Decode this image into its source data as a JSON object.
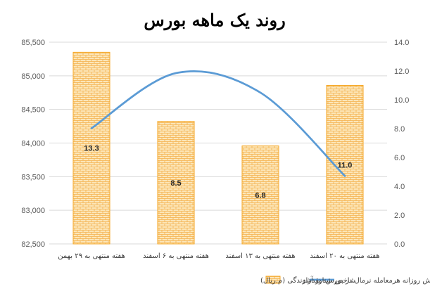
{
  "chart_data": {
    "type": "bar",
    "title": "روند یک ماهه بورس",
    "categories": [
      "هفته منتهی به ۲۹ بهمن",
      "هفته منتهی به ۶ اسفند",
      "هفته منتهی به ۱۳ اسفند",
      "هفته منتهی به ۲۰ اسفند"
    ],
    "series": [
      {
        "name": "متوسط ارزش روزانه هرمعامله نرمال در بورس- نقدشوندگی (م.ریال)",
        "type": "bar",
        "axis": "right",
        "values": [
          13.3,
          8.5,
          6.8,
          11.0
        ],
        "labels": [
          "13.3",
          "8.5",
          "6.8",
          "11.0"
        ],
        "color": "#F5A623",
        "fill": "#FCE6B8",
        "pattern": "brick"
      },
      {
        "name": "شاخص شناور آزاد",
        "type": "line",
        "axis": "left",
        "smooth": true,
        "values": [
          84220,
          85040,
          84750,
          83510
        ],
        "color": "#5B9BD5"
      }
    ],
    "y_left": {
      "min": 82500,
      "max": 85500,
      "step": 500,
      "ticks": [
        "82,500",
        "83,000",
        "83,500",
        "84,000",
        "84,500",
        "85,000",
        "85,500"
      ]
    },
    "y_right": {
      "min": 0,
      "max": 14,
      "step": 2,
      "ticks": [
        "0.0",
        "2.0",
        "4.0",
        "6.0",
        "8.0",
        "10.0",
        "12.0",
        "14.0"
      ]
    },
    "grid": "horizontal",
    "legend_position": "bottom"
  }
}
